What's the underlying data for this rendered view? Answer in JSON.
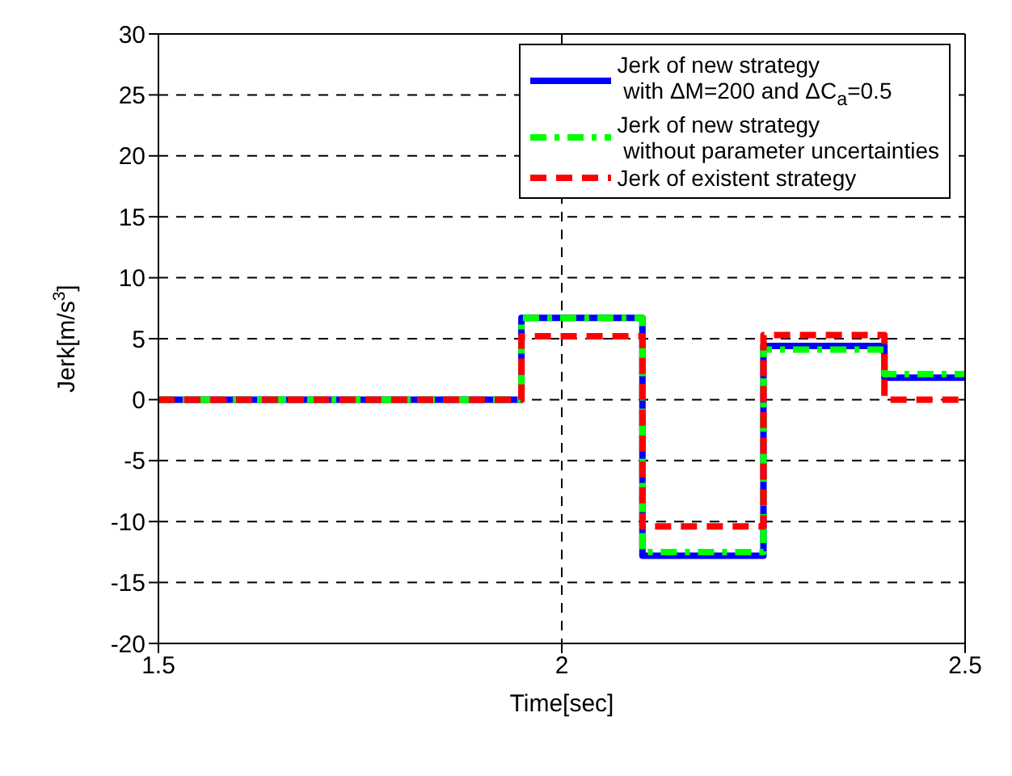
{
  "chart_data": {
    "type": "step",
    "xlabel": "Time[sec]",
    "ylabel": "Jerk[m/s$^{3}$]",
    "xlim": [
      1.5,
      2.5
    ],
    "xticks": [
      1.5,
      2,
      2.5
    ],
    "ylim": [
      -20,
      30
    ],
    "yticks": [
      -20,
      -15,
      -10,
      -5,
      0,
      5,
      10,
      15,
      20,
      25,
      30
    ],
    "grid": true,
    "legend": "top right",
    "series": [
      {
        "name": "Jerk of new strategy\n with ΔM=200 and ΔC$_{a}$=0.5",
        "color": "#0000ff",
        "line_style": "solid",
        "x": [
          1.5,
          1.95,
          2.1,
          2.25,
          2.4,
          2.5
        ],
        "values": [
          0,
          6.7,
          -12.8,
          4.4,
          1.8,
          1.8
        ]
      },
      {
        "name": "Jerk of new strategy\n without parameter uncertainties",
        "color": "#00ff00",
        "line_style": "dashdot",
        "x": [
          1.5,
          1.95,
          2.1,
          2.25,
          2.4,
          2.5
        ],
        "values": [
          0,
          6.7,
          -12.5,
          4.1,
          2.1,
          2.1
        ]
      },
      {
        "name": "Jerk of existent strategy",
        "color": "#ff0000",
        "line_style": "dashed",
        "x": [
          1.5,
          1.95,
          2.1,
          2.25,
          2.4,
          2.5
        ],
        "values": [
          0,
          5.2,
          -10.4,
          5.3,
          0,
          0
        ]
      }
    ]
  }
}
